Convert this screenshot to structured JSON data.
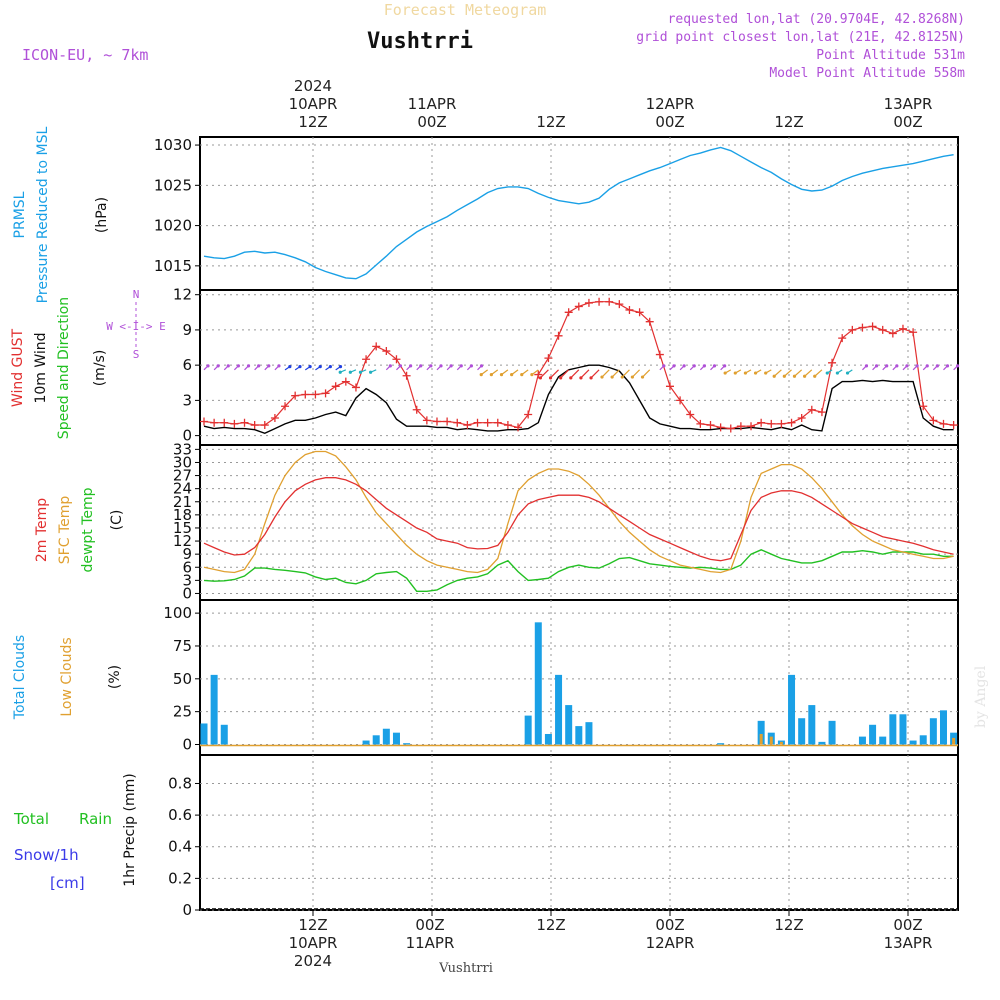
{
  "header": {
    "title": "Forecast Meteogram",
    "location": "Vushtrri",
    "model": "ICON-EU, ~ 7km",
    "requested": "requested lon,lat (20.9704E, 42.8268N)",
    "grid_point": "grid point closest lon,lat (21E, 42.8125N)",
    "point_altitude": "Point Altitude 531m",
    "model_altitude": "Model Point Altitude 558m",
    "credit": "by Angel",
    "footer_location": "Vushtrri"
  },
  "time_axis": {
    "top_labels": [
      {
        "l1": "2024",
        "l2": "10APR",
        "l3": "12Z"
      },
      {
        "l1": "",
        "l2": "11APR",
        "l3": "00Z"
      },
      {
        "l1": "",
        "l2": "",
        "l3": "12Z"
      },
      {
        "l1": "",
        "l2": "12APR",
        "l3": "00Z"
      },
      {
        "l1": "",
        "l2": "",
        "l3": "12Z"
      },
      {
        "l1": "",
        "l2": "13APR",
        "l3": "00Z"
      }
    ],
    "bottom_labels": [
      {
        "l1": "12Z",
        "l2": "10APR",
        "l3": "2024"
      },
      {
        "l1": "00Z",
        "l2": "11APR",
        "l3": ""
      },
      {
        "l1": "12Z",
        "l2": "",
        "l3": ""
      },
      {
        "l1": "00Z",
        "l2": "12APR",
        "l3": ""
      },
      {
        "l1": "12Z",
        "l2": "",
        "l3": ""
      },
      {
        "l1": "00Z",
        "l2": "13APR",
        "l3": ""
      }
    ]
  },
  "colors": {
    "pressure": "#1aa0e6",
    "gust": "#e23030",
    "wind": "#000000",
    "temp2m": "#e23030",
    "sfc": "#e0a030",
    "dewpt": "#22c022",
    "total_clouds": "#1aa0e6",
    "low_clouds": "#e0a030",
    "rain": "#22c022",
    "snow": "#3a3ae8",
    "purple": "#b050d8",
    "cream": "#f0d8a0"
  },
  "chart_data": [
    {
      "type": "line",
      "name": "pressure",
      "ylabel_lines": [
        "PRMSL",
        "Pressure Reduced to MSL"
      ],
      "unit": "(hPa)",
      "yticks": [
        "1015",
        "1020",
        "1025",
        "1030"
      ],
      "ylim": [
        1012,
        1031
      ],
      "x_hours": [
        0,
        1,
        2,
        3,
        4,
        5,
        6,
        7,
        8,
        9,
        10,
        11,
        12,
        13,
        14,
        15,
        16,
        17,
        18,
        19,
        20,
        21,
        22,
        23,
        24,
        25,
        26,
        27,
        28,
        29,
        30,
        31,
        32,
        33,
        34,
        35,
        36,
        37,
        38,
        39,
        40,
        41,
        42,
        43,
        44,
        45,
        46,
        47,
        48,
        49,
        50,
        51,
        52,
        53,
        54,
        55,
        56,
        57,
        58,
        59,
        60,
        61,
        62,
        63,
        64,
        65,
        66,
        67,
        68,
        69,
        70,
        71,
        72,
        73,
        74
      ],
      "series": [
        {
          "name": "PRMSL",
          "values": [
            1016.2,
            1016.0,
            1015.9,
            1016.2,
            1016.7,
            1016.8,
            1016.6,
            1016.7,
            1016.4,
            1016.0,
            1015.5,
            1014.8,
            1014.3,
            1013.9,
            1013.5,
            1013.4,
            1014.0,
            1015.1,
            1016.2,
            1017.4,
            1018.3,
            1019.2,
            1019.9,
            1020.5,
            1021.1,
            1021.9,
            1022.6,
            1023.3,
            1024.1,
            1024.6,
            1024.8,
            1024.8,
            1024.6,
            1024.0,
            1023.5,
            1023.1,
            1022.9,
            1022.7,
            1022.9,
            1023.4,
            1024.5,
            1025.3,
            1025.8,
            1026.3,
            1026.8,
            1027.2,
            1027.7,
            1028.2,
            1028.7,
            1029.0,
            1029.4,
            1029.7,
            1029.3,
            1028.6,
            1027.9,
            1027.2,
            1026.6,
            1025.8,
            1025.1,
            1024.5,
            1024.3,
            1024.4,
            1024.9,
            1025.6,
            1026.1,
            1026.5,
            1026.8,
            1027.1,
            1027.3,
            1027.5,
            1027.7,
            1028.0,
            1028.3,
            1028.6,
            1028.8
          ]
        }
      ]
    },
    {
      "type": "line",
      "name": "wind",
      "ylabel_lines": [
        "Wind GUST",
        "10m Wind",
        "Speed and Direction"
      ],
      "unit": "(m/s)",
      "compass": {
        "n": "N",
        "w": "W <-I-> E",
        "s": "S"
      },
      "yticks": [
        "0",
        "3",
        "6",
        "9",
        "12"
      ],
      "ylim": [
        -0.8,
        12.4
      ],
      "x_hours": [
        0,
        1,
        2,
        3,
        4,
        5,
        6,
        7,
        8,
        9,
        10,
        11,
        12,
        13,
        14,
        15,
        16,
        17,
        18,
        19,
        20,
        21,
        22,
        23,
        24,
        25,
        26,
        27,
        28,
        29,
        30,
        31,
        32,
        33,
        34,
        35,
        36,
        37,
        38,
        39,
        40,
        41,
        42,
        43,
        44,
        45,
        46,
        47,
        48,
        49,
        50,
        51,
        52,
        53,
        54,
        55,
        56,
        57,
        58,
        59,
        60,
        61,
        62,
        63,
        64,
        65,
        66,
        67,
        68,
        69,
        70,
        71,
        72,
        73,
        74
      ],
      "series": [
        {
          "name": "Wind GUST",
          "values": [
            1.2,
            1.1,
            1.1,
            1.0,
            1.1,
            0.9,
            0.9,
            1.5,
            2.5,
            3.4,
            3.5,
            3.5,
            3.6,
            4.2,
            4.6,
            4.1,
            6.5,
            7.6,
            7.2,
            6.5,
            5.1,
            2.2,
            1.3,
            1.2,
            1.2,
            1.1,
            0.9,
            1.1,
            1.1,
            1.1,
            0.9,
            0.7,
            1.8,
            5.2,
            6.6,
            8.5,
            10.5,
            11.0,
            11.3,
            11.4,
            11.4,
            11.2,
            10.7,
            10.5,
            9.7,
            6.9,
            4.2,
            3.0,
            1.8,
            1.0,
            0.9,
            0.7,
            0.6,
            0.8,
            0.8,
            1.1,
            1.0,
            1.0,
            1.1,
            1.5,
            2.2,
            2.0,
            6.2,
            8.3,
            9.0,
            9.2,
            9.3,
            9.0,
            8.7,
            9.1,
            8.8,
            2.5,
            1.3,
            1.0,
            0.9
          ]
        },
        {
          "name": "10m Wind",
          "values": [
            0.8,
            0.6,
            0.7,
            0.6,
            0.6,
            0.5,
            0.2,
            0.6,
            1.0,
            1.3,
            1.3,
            1.5,
            1.8,
            2.0,
            1.7,
            3.2,
            4.0,
            3.5,
            2.8,
            1.4,
            0.8,
            0.8,
            0.8,
            0.7,
            0.7,
            0.5,
            0.6,
            0.5,
            0.4,
            0.4,
            0.5,
            0.5,
            0.6,
            1.1,
            3.5,
            5.0,
            5.6,
            5.8,
            6.0,
            6.0,
            5.8,
            5.5,
            4.5,
            3.0,
            1.5,
            1.0,
            0.8,
            0.6,
            0.6,
            0.5,
            0.5,
            0.6,
            0.6,
            0.6,
            0.7,
            0.6,
            0.5,
            0.7,
            0.5,
            0.9,
            0.5,
            0.4,
            4.0,
            4.6,
            4.6,
            4.7,
            4.6,
            4.7,
            4.6,
            4.6,
            4.6,
            1.5,
            0.8,
            0.5,
            0.5
          ]
        }
      ]
    },
    {
      "type": "line",
      "name": "temperature",
      "ylabel_lines": [
        "2m Temp",
        "SFC Temp",
        "dewpt Temp"
      ],
      "unit": "(C)",
      "yticks": [
        "0",
        "3",
        "6",
        "9",
        "12",
        "15",
        "18",
        "21",
        "24",
        "27",
        "30",
        "33"
      ],
      "ylim": [
        -1.5,
        34
      ],
      "x_hours": [
        0,
        1,
        2,
        3,
        4,
        5,
        6,
        7,
        8,
        9,
        10,
        11,
        12,
        13,
        14,
        15,
        16,
        17,
        18,
        19,
        20,
        21,
        22,
        23,
        24,
        25,
        26,
        27,
        28,
        29,
        30,
        31,
        32,
        33,
        34,
        35,
        36,
        37,
        38,
        39,
        40,
        41,
        42,
        43,
        44,
        45,
        46,
        47,
        48,
        49,
        50,
        51,
        52,
        53,
        54,
        55,
        56,
        57,
        58,
        59,
        60,
        61,
        62,
        63,
        64,
        65,
        66,
        67,
        68,
        69,
        70,
        71,
        72,
        73,
        74
      ],
      "series": [
        {
          "name": "2m Temp",
          "values": [
            11.5,
            10.5,
            9.5,
            8.8,
            9.0,
            10.5,
            13.5,
            17.5,
            21.0,
            23.5,
            25.0,
            26.0,
            26.5,
            26.5,
            26.0,
            25.0,
            23.5,
            21.5,
            19.5,
            18.0,
            16.5,
            15.0,
            14.0,
            12.5,
            12.0,
            11.5,
            10.5,
            10.2,
            10.3,
            11.0,
            14.0,
            18.0,
            20.5,
            21.5,
            22.0,
            22.5,
            22.5,
            22.5,
            22.0,
            21.0,
            19.5,
            18.0,
            16.5,
            15.0,
            13.5,
            12.5,
            11.5,
            10.5,
            9.5,
            8.5,
            7.8,
            7.5,
            8.0,
            13.5,
            19.0,
            22.0,
            23.0,
            23.5,
            23.5,
            23.0,
            22.0,
            20.5,
            19.0,
            17.5,
            16.0,
            15.0,
            14.0,
            13.0,
            12.5,
            12.0,
            11.5,
            10.8,
            10.0,
            9.5,
            9.0
          ]
        },
        {
          "name": "SFC Temp",
          "values": [
            6.0,
            5.5,
            5.0,
            4.8,
            5.5,
            9.0,
            16.0,
            22.5,
            27.0,
            30.0,
            31.8,
            32.5,
            32.5,
            31.5,
            29.0,
            26.0,
            22.0,
            18.5,
            16.0,
            13.5,
            11.0,
            9.0,
            7.5,
            6.5,
            6.0,
            5.5,
            5.0,
            4.8,
            5.5,
            8.0,
            16.0,
            23.5,
            26.0,
            27.5,
            28.5,
            28.5,
            28.0,
            27.0,
            25.0,
            22.5,
            19.5,
            16.5,
            14.0,
            12.0,
            10.0,
            8.5,
            7.5,
            6.5,
            6.0,
            5.5,
            5.0,
            4.8,
            5.5,
            12.0,
            22.0,
            27.5,
            28.5,
            29.5,
            29.5,
            28.5,
            26.5,
            24.0,
            21.0,
            18.0,
            15.5,
            13.5,
            12.0,
            11.0,
            10.0,
            9.5,
            9.0,
            8.5,
            8.0,
            8.0,
            8.5
          ]
        },
        {
          "name": "dewpt Temp",
          "values": [
            3.0,
            2.8,
            2.9,
            3.2,
            4.0,
            5.8,
            5.8,
            5.5,
            5.3,
            5.0,
            4.7,
            3.8,
            3.2,
            3.5,
            2.5,
            2.2,
            3.0,
            4.5,
            4.8,
            5.0,
            3.5,
            0.5,
            0.5,
            0.8,
            2.0,
            3.0,
            3.5,
            3.8,
            4.5,
            6.5,
            7.5,
            5.0,
            3.0,
            3.2,
            3.5,
            5.0,
            6.0,
            6.5,
            6.0,
            5.8,
            6.8,
            8.0,
            8.2,
            7.5,
            6.8,
            6.5,
            6.2,
            6.0,
            5.8,
            6.0,
            5.8,
            5.5,
            5.5,
            6.5,
            9.0,
            10.0,
            9.0,
            8.0,
            7.5,
            7.0,
            7.0,
            7.5,
            8.5,
            9.5,
            9.5,
            9.8,
            9.5,
            9.0,
            9.5,
            9.5,
            9.5,
            9.0,
            9.0,
            8.5,
            8.5
          ]
        }
      ]
    },
    {
      "type": "bar",
      "name": "clouds",
      "ylabel_lines": [
        "Total Clouds",
        "Low Clouds"
      ],
      "unit": "(%)",
      "yticks": [
        "0",
        "25",
        "50",
        "75",
        "100"
      ],
      "ylim": [
        -8,
        110
      ],
      "x_hours": [
        0,
        1,
        2,
        3,
        4,
        5,
        6,
        7,
        8,
        9,
        10,
        11,
        12,
        13,
        14,
        15,
        16,
        17,
        18,
        19,
        20,
        21,
        22,
        23,
        24,
        25,
        26,
        27,
        28,
        29,
        30,
        31,
        32,
        33,
        34,
        35,
        36,
        37,
        38,
        39,
        40,
        41,
        42,
        43,
        44,
        45,
        46,
        47,
        48,
        49,
        50,
        51,
        52,
        53,
        54,
        55,
        56,
        57,
        58,
        59,
        60,
        61,
        62,
        63,
        64,
        65,
        66,
        67,
        68,
        69,
        70,
        71,
        72,
        73,
        74
      ],
      "series": [
        {
          "name": "Total Clouds",
          "values": [
            16,
            53,
            15,
            0,
            0,
            0,
            0,
            0,
            0,
            0,
            0,
            0,
            0,
            0,
            0,
            0,
            3,
            7,
            12,
            9,
            1,
            0,
            0,
            0,
            0,
            0,
            0,
            0,
            0,
            0,
            0,
            0,
            22,
            93,
            8,
            53,
            30,
            14,
            17,
            0,
            0,
            0,
            0,
            0,
            0,
            0,
            0,
            0,
            0,
            0,
            0,
            1,
            0,
            0,
            0,
            18,
            9,
            3,
            53,
            20,
            30,
            2,
            18,
            0,
            0,
            6,
            15,
            6,
            23,
            23,
            3,
            7,
            20,
            26,
            9
          ]
        },
        {
          "name": "Low Clouds",
          "values": [
            0,
            0,
            0,
            0,
            0,
            0,
            0,
            0,
            0,
            0,
            0,
            0,
            0,
            0,
            0,
            0,
            0,
            0,
            0,
            0,
            0,
            0,
            0,
            0,
            0,
            0,
            0,
            0,
            0,
            0,
            0,
            0,
            0,
            0,
            0,
            0,
            0,
            0,
            0,
            0,
            0,
            0,
            0,
            0,
            0,
            0,
            0,
            0,
            0,
            0,
            0,
            0,
            0,
            0,
            0,
            8,
            6,
            2,
            0,
            0,
            0,
            0,
            0,
            0,
            0,
            0,
            0,
            0,
            0,
            0,
            0,
            0,
            0,
            0,
            5
          ]
        }
      ]
    },
    {
      "type": "bar",
      "name": "precip",
      "left_labels": {
        "total": "Total",
        "rain": "Rain",
        "snow": "Snow/1h",
        "cm": "[cm]"
      },
      "ylabel": "1hr Precip (mm)",
      "yticks": [
        "0",
        "0.2",
        "0.4",
        "0.6",
        "0.8"
      ],
      "ylim": [
        0,
        0.98
      ],
      "series": [
        {
          "name": "Rain",
          "values": []
        },
        {
          "name": "Snow/1h",
          "values": []
        }
      ]
    }
  ]
}
